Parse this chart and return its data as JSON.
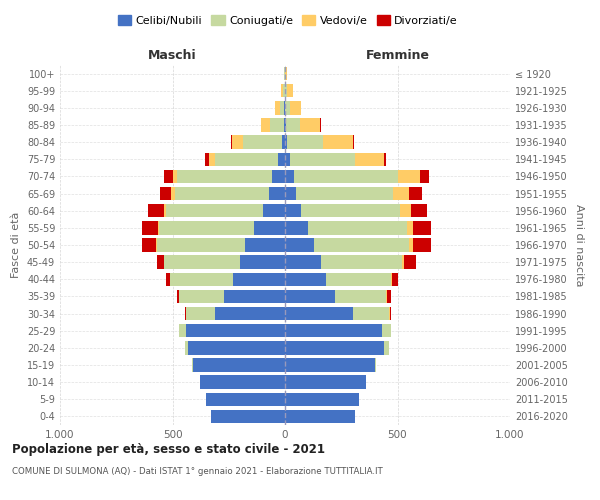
{
  "age_groups": [
    "0-4",
    "5-9",
    "10-14",
    "15-19",
    "20-24",
    "25-29",
    "30-34",
    "35-39",
    "40-44",
    "45-49",
    "50-54",
    "55-59",
    "60-64",
    "65-69",
    "70-74",
    "75-79",
    "80-84",
    "85-89",
    "90-94",
    "95-99",
    "100+"
  ],
  "birth_years": [
    "2016-2020",
    "2011-2015",
    "2006-2010",
    "2001-2005",
    "1996-2000",
    "1991-1995",
    "1986-1990",
    "1981-1985",
    "1976-1980",
    "1971-1975",
    "1966-1970",
    "1961-1965",
    "1956-1960",
    "1951-1955",
    "1946-1950",
    "1941-1945",
    "1936-1940",
    "1931-1935",
    "1926-1930",
    "1921-1925",
    "≤ 1920"
  ],
  "colors": {
    "celibi": "#4472C4",
    "coniugati": "#C6D9A0",
    "vedovi": "#FFCC66",
    "divorziati": "#CC0000"
  },
  "males": {
    "celibi": [
      330,
      350,
      380,
      410,
      430,
      440,
      310,
      270,
      230,
      200,
      180,
      140,
      100,
      70,
      60,
      30,
      15,
      5,
      3,
      2,
      1
    ],
    "coniugati": [
      0,
      0,
      0,
      5,
      15,
      30,
      130,
      200,
      280,
      340,
      390,
      420,
      430,
      420,
      420,
      280,
      170,
      60,
      20,
      8,
      2
    ],
    "vedovi": [
      0,
      0,
      0,
      0,
      0,
      0,
      0,
      0,
      0,
      0,
      5,
      5,
      10,
      15,
      20,
      30,
      50,
      40,
      20,
      8,
      2
    ],
    "divorziati": [
      0,
      0,
      0,
      0,
      0,
      0,
      5,
      10,
      20,
      30,
      60,
      70,
      70,
      50,
      40,
      15,
      5,
      2,
      0,
      0,
      0
    ]
  },
  "females": {
    "celibi": [
      310,
      330,
      360,
      400,
      440,
      430,
      300,
      220,
      180,
      160,
      130,
      100,
      70,
      50,
      40,
      20,
      10,
      5,
      2,
      1,
      0
    ],
    "coniugati": [
      0,
      0,
      0,
      5,
      20,
      40,
      160,
      230,
      290,
      360,
      420,
      440,
      440,
      430,
      460,
      290,
      160,
      60,
      20,
      8,
      2
    ],
    "vedovi": [
      0,
      0,
      0,
      0,
      0,
      0,
      5,
      5,
      5,
      10,
      20,
      30,
      50,
      70,
      100,
      130,
      130,
      90,
      50,
      25,
      5
    ],
    "divorziati": [
      0,
      0,
      0,
      0,
      0,
      0,
      5,
      15,
      25,
      50,
      80,
      80,
      70,
      60,
      40,
      10,
      5,
      3,
      0,
      0,
      0
    ]
  },
  "title": "Popolazione per età, sesso e stato civile - 2021",
  "subtitle": "COMUNE DI SULMONA (AQ) - Dati ISTAT 1° gennaio 2021 - Elaborazione TUTTITALIA.IT",
  "xlabel_maschi": "Maschi",
  "xlabel_femmine": "Femmine",
  "ylabel_left": "Fasce di età",
  "ylabel_right": "Anni di nascita",
  "xlim": 1000,
  "legend_labels": [
    "Celibi/Nubili",
    "Coniugati/e",
    "Vedovi/e",
    "Divorziati/e"
  ],
  "background_color": "#ffffff",
  "grid_color": "#cccccc"
}
